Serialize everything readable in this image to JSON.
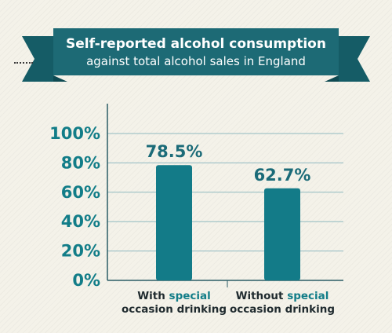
{
  "title": {
    "main": "Self-reported alcohol consumption",
    "sub": "against total alcohol sales in England"
  },
  "colors": {
    "bar": "#137b88",
    "banner": "#1d6a75",
    "banner_fold": "#0e4a52",
    "banner_tail": "#155c66",
    "text_accent": "#127d88",
    "grid": "#8fb9c0",
    "axis": "#2b5c66"
  },
  "chart_data": {
    "type": "bar",
    "title": "Self-reported alcohol consumption against total alcohol sales in England",
    "categories": [
      "With special occasion drinking",
      "Without special occasion drinking"
    ],
    "category_label_parts": [
      [
        [
          {
            "text": "With ",
            "hl": false
          },
          {
            "text": "special",
            "hl": true
          }
        ],
        [
          {
            "text": "occasion drinking",
            "hl": false
          }
        ]
      ],
      [
        [
          {
            "text": "Without ",
            "hl": false
          },
          {
            "text": "special",
            "hl": true
          }
        ],
        [
          {
            "text": "occasion drinking",
            "hl": false
          }
        ]
      ]
    ],
    "values": [
      78.5,
      62.7
    ],
    "data_labels": [
      "78.5%",
      "62.7%"
    ],
    "ylim": [
      0,
      100
    ],
    "yticks": [
      0,
      20,
      40,
      60,
      80,
      100
    ],
    "ytick_labels": [
      "0%",
      "20%",
      "40%",
      "60%",
      "80%",
      "100%"
    ],
    "xlabel": "",
    "ylabel": "",
    "grid": true,
    "legend": "none"
  }
}
